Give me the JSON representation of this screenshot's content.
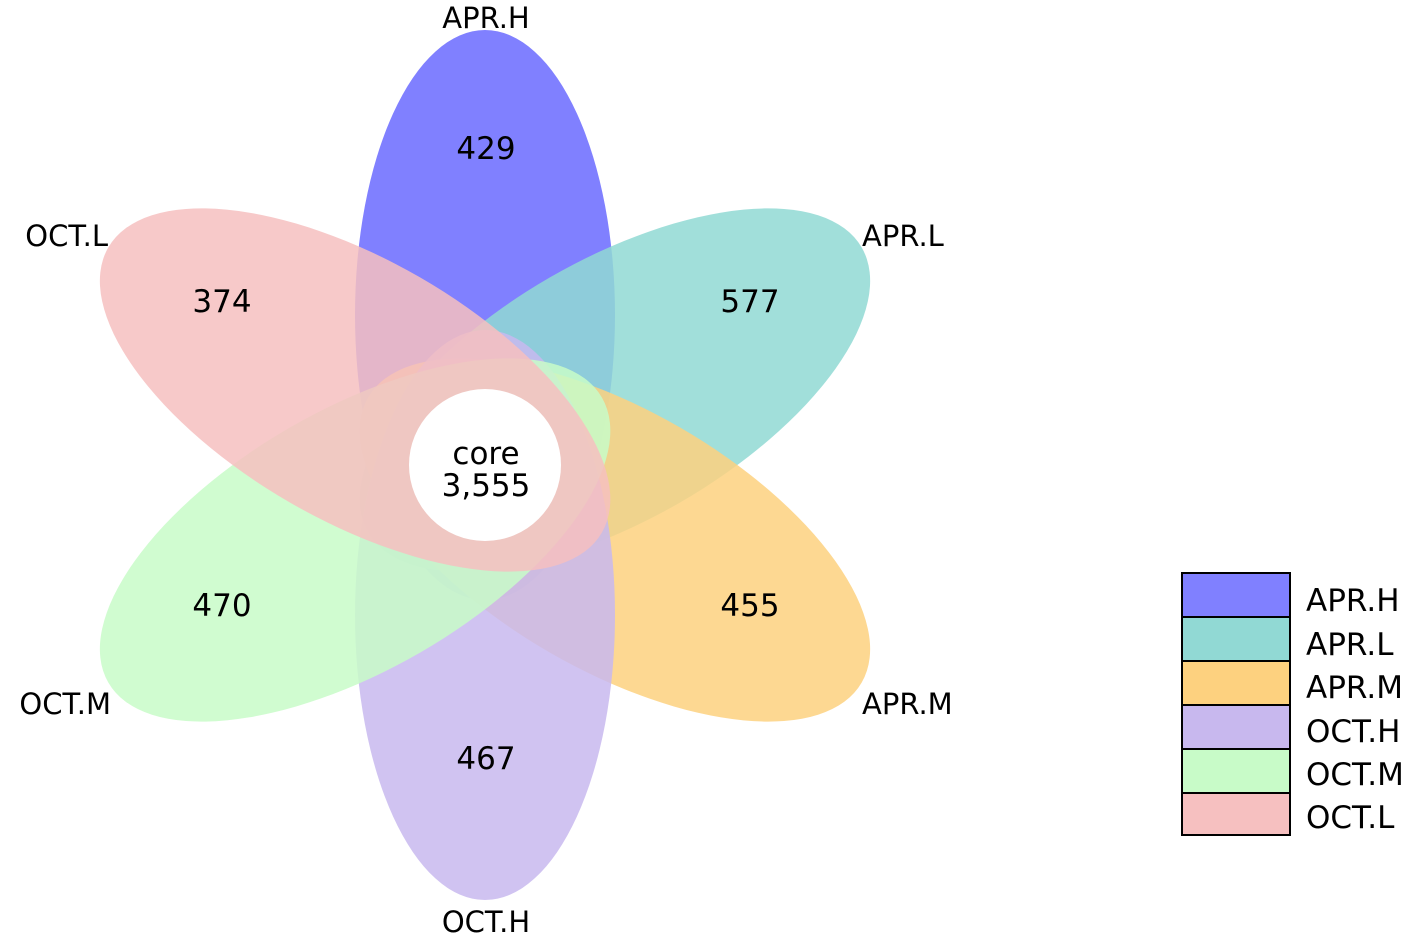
{
  "diagram": {
    "type": "flower-venn",
    "core": {
      "label": "core",
      "value": "3,555"
    },
    "petals": [
      {
        "name": "APR.H",
        "value": "429",
        "color": "#8080ff"
      },
      {
        "name": "APR.L",
        "value": "577",
        "color": "#91d9d4"
      },
      {
        "name": "APR.M",
        "value": "455",
        "color": "#fdd17f"
      },
      {
        "name": "OCT.H",
        "value": "467",
        "color": "#c8b8ee"
      },
      {
        "name": "OCT.M",
        "value": "470",
        "color": "#c8fbc8"
      },
      {
        "name": "OCT.L",
        "value": "374",
        "color": "#f6c0c0"
      }
    ],
    "legend": {
      "placement": "right",
      "entries": [
        {
          "label": "APR.H",
          "color": "#8080ff"
        },
        {
          "label": "APR.L",
          "color": "#91d9d4"
        },
        {
          "label": "APR.M",
          "color": "#fdd17f"
        },
        {
          "label": "OCT.H",
          "color": "#c8b8ee"
        },
        {
          "label": "OCT.M",
          "color": "#c8fbc8"
        },
        {
          "label": "OCT.L",
          "color": "#f6c0c0"
        }
      ]
    }
  }
}
